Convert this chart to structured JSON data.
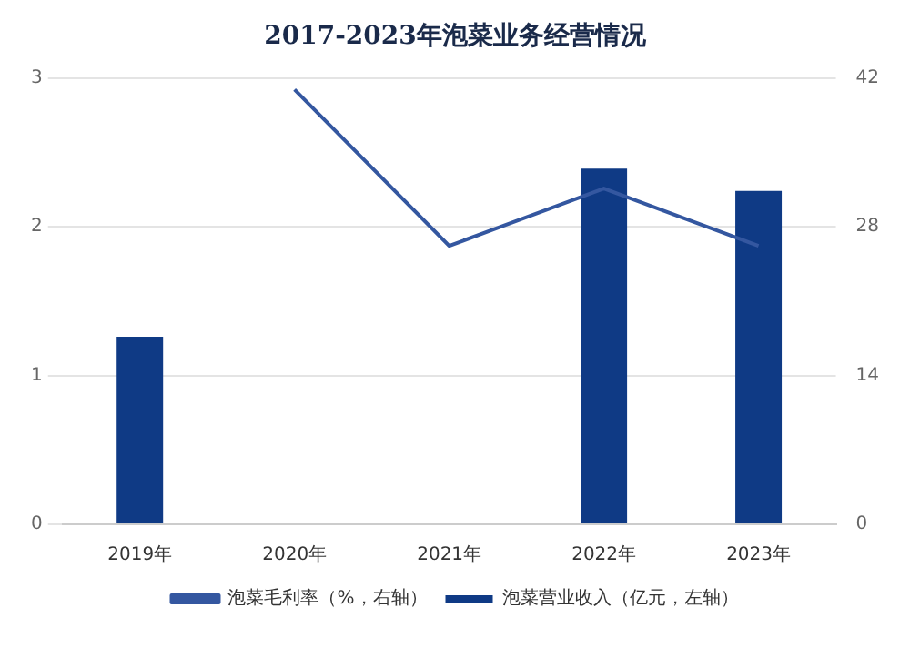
{
  "chart_data": {
    "type": "bar",
    "title": "2017-2023年泡菜业务经营情况",
    "categories": [
      "2019年",
      "2020年",
      "2021年",
      "2022年",
      "2023年"
    ],
    "series": [
      {
        "name": "泡菜营业收入（亿元，左轴）",
        "color": "#0f3a85",
        "values": [
          1.26,
          null,
          null,
          2.39,
          2.24
        ]
      },
      {
        "name": "泡菜毛利率（%，右轴）",
        "type": "line",
        "axis": "y2",
        "color": "#3457a0",
        "values": [
          null,
          40.9,
          26.2,
          31.6,
          26.2
        ]
      }
    ],
    "ylim": [
      0,
      3
    ],
    "yticks": [
      0,
      1,
      2,
      3
    ],
    "y2lim": [
      0,
      42
    ],
    "y2ticks": [
      0,
      14,
      28,
      42
    ],
    "grid": "y",
    "legend": "bottom",
    "marker": "none"
  }
}
